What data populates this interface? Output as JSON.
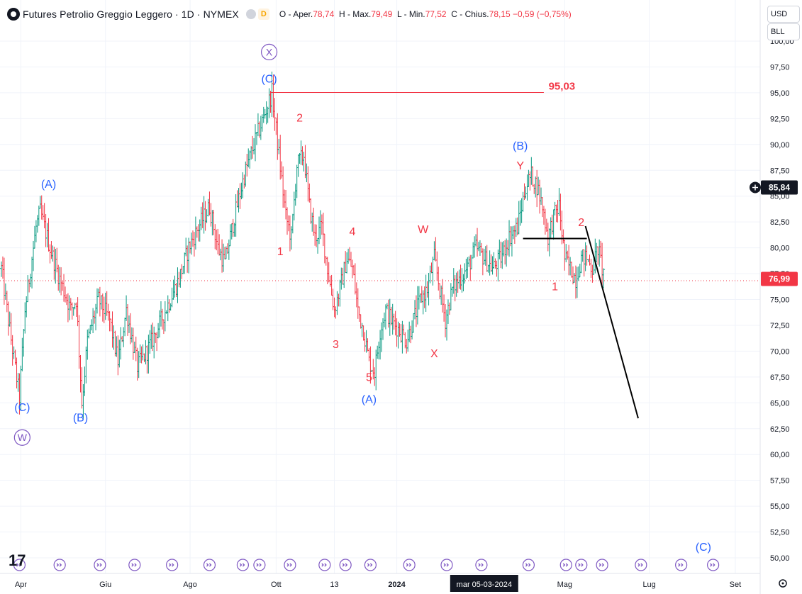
{
  "header": {
    "title": "Futures Petrolio Greggio Leggero · 1D · NYMEX",
    "badge": "D",
    "ohlc": [
      {
        "label": "O -",
        "key": "Aper.",
        "value": "78,74"
      },
      {
        "label": "H -",
        "key": "Max.",
        "value": "79,49"
      },
      {
        "label": "L -",
        "key": "Min.",
        "value": "77,52"
      },
      {
        "label": "C -",
        "key": "Chius.",
        "value": "78,15"
      }
    ],
    "change": "−0,59 (−0,75%)"
  },
  "currency": "USD",
  "unit": "BLL",
  "price_labels": {
    "marker": "85,84",
    "last": "76,99"
  },
  "colors": {
    "up": "#089981",
    "down": "#f23645",
    "blue_label": "#2962ff",
    "red_label": "#f23645",
    "purple": "#7e57c2"
  },
  "chart_data": {
    "type": "ohlc-bar",
    "y_ticks": [
      "100,00",
      "97,50",
      "95,00",
      "92,50",
      "90,00",
      "87,50",
      "85,00",
      "82,50",
      "80,00",
      "77,50",
      "75,00",
      "72,50",
      "70,00",
      "67,50",
      "65,00",
      "62,50",
      "60,00",
      "57,50",
      "55,00",
      "52,50",
      "50,00"
    ],
    "x_labels": [
      {
        "text": "Apr",
        "t": 14
      },
      {
        "text": "Giu",
        "t": 75
      },
      {
        "text": "Ago",
        "t": 136
      },
      {
        "text": "Ott",
        "t": 198
      },
      {
        "text": "13",
        "t": 240
      },
      {
        "text": "2024",
        "t": 285
      },
      {
        "text": "Mag",
        "t": 406
      },
      {
        "text": "Lug",
        "t": 467
      },
      {
        "text": "Set",
        "t": 529
      }
    ],
    "crosshair_label": {
      "text": "mar 05-03-2024",
      "t": 348
    },
    "ylim": [
      49,
      101.5
    ],
    "xlim": [
      -2,
      545
    ],
    "last_price": 76.99,
    "anchors": [
      [
        0,
        78
      ],
      [
        5,
        73
      ],
      [
        13,
        65.5
      ],
      [
        17,
        74
      ],
      [
        25,
        82
      ],
      [
        28,
        83.5
      ],
      [
        35,
        80
      ],
      [
        42,
        77
      ],
      [
        50,
        74
      ],
      [
        54,
        75
      ],
      [
        58,
        65
      ],
      [
        62,
        71
      ],
      [
        70,
        75
      ],
      [
        78,
        73
      ],
      [
        84,
        69
      ],
      [
        90,
        74
      ],
      [
        98,
        68.5
      ],
      [
        105,
        70
      ],
      [
        112,
        72
      ],
      [
        120,
        74.5
      ],
      [
        128,
        77
      ],
      [
        135,
        80
      ],
      [
        142,
        82
      ],
      [
        150,
        84
      ],
      [
        156,
        80
      ],
      [
        161,
        78.5
      ],
      [
        168,
        83
      ],
      [
        175,
        87
      ],
      [
        182,
        90
      ],
      [
        190,
        93
      ],
      [
        195,
        95
      ],
      [
        200,
        89
      ],
      [
        205,
        83
      ],
      [
        209,
        81
      ],
      [
        213,
        88
      ],
      [
        218,
        89
      ],
      [
        222,
        84
      ],
      [
        226,
        81
      ],
      [
        231,
        82
      ],
      [
        235,
        78
      ],
      [
        240,
        74
      ],
      [
        244,
        76
      ],
      [
        249,
        79
      ],
      [
        253,
        78
      ],
      [
        257,
        74
      ],
      [
        261,
        72
      ],
      [
        265,
        69
      ],
      [
        269,
        68
      ],
      [
        273,
        72
      ],
      [
        277,
        74
      ],
      [
        281,
        73
      ],
      [
        287,
        72
      ],
      [
        292,
        71
      ],
      [
        297,
        73
      ],
      [
        302,
        75
      ],
      [
        307,
        76
      ],
      [
        312,
        79
      ],
      [
        316,
        76
      ],
      [
        320,
        73
      ],
      [
        325,
        76
      ],
      [
        330,
        77
      ],
      [
        336,
        78
      ],
      [
        342,
        80
      ],
      [
        348,
        79
      ],
      [
        354,
        78
      ],
      [
        360,
        79
      ],
      [
        366,
        81
      ],
      [
        372,
        82
      ],
      [
        378,
        86
      ],
      [
        382,
        87
      ],
      [
        386,
        86
      ],
      [
        390,
        84
      ],
      [
        394,
        81
      ],
      [
        398,
        83
      ],
      [
        402,
        84
      ],
      [
        406,
        79
      ],
      [
        410,
        78
      ],
      [
        414,
        77
      ],
      [
        418,
        79
      ],
      [
        422,
        79
      ],
      [
        426,
        78
      ],
      [
        430,
        80
      ],
      [
        433,
        78
      ],
      [
        435,
        77
      ]
    ],
    "waves": [
      {
        "text": "(C)",
        "t": 15,
        "y": 64.2,
        "color": "blue"
      },
      {
        "text": "W",
        "t": 15,
        "y": 61.3,
        "color": "purple",
        "circled": true
      },
      {
        "text": "(A)",
        "t": 34,
        "y": 85.8,
        "color": "blue"
      },
      {
        "text": "(B)",
        "t": 57,
        "y": 63.2,
        "color": "blue"
      },
      {
        "text": "X",
        "t": 193,
        "y": 98.6,
        "color": "purple",
        "circled": true
      },
      {
        "text": "(C)",
        "t": 193,
        "y": 96.0,
        "color": "blue"
      },
      {
        "text": "95,03",
        "t": 404,
        "y": 95.3,
        "color": "red",
        "bold": true
      },
      {
        "text": "2",
        "t": 215,
        "y": 92.2,
        "color": "red"
      },
      {
        "text": "1",
        "t": 201,
        "y": 79.3,
        "color": "red"
      },
      {
        "text": "4",
        "t": 253,
        "y": 81.2,
        "color": "red"
      },
      {
        "text": "3",
        "t": 241,
        "y": 70.3,
        "color": "red"
      },
      {
        "text": "5",
        "t": 265,
        "y": 67.1,
        "color": "red"
      },
      {
        "text": "(A)",
        "t": 265,
        "y": 65.0,
        "color": "blue"
      },
      {
        "text": "W",
        "t": 304,
        "y": 81.4,
        "color": "red"
      },
      {
        "text": "X",
        "t": 312,
        "y": 69.4,
        "color": "red"
      },
      {
        "text": "(B)",
        "t": 374,
        "y": 89.5,
        "color": "blue"
      },
      {
        "text": "Y",
        "t": 374,
        "y": 87.6,
        "color": "red"
      },
      {
        "text": "2",
        "t": 418,
        "y": 82.1,
        "color": "red"
      },
      {
        "text": "1",
        "t": 399,
        "y": 75.9,
        "color": "red"
      },
      {
        "text": "(C)",
        "t": 506,
        "y": 50.7,
        "color": "blue"
      }
    ],
    "levels": [
      {
        "price": 95.03,
        "t_from": 194,
        "t_to": 391,
        "color": "#f23645"
      },
      {
        "price": 80.9,
        "t_from": 376,
        "t_to": 422,
        "color": "#000000"
      }
    ],
    "projection": [
      [
        421,
        82.1
      ],
      [
        459,
        63.5
      ]
    ],
    "event_icons": [
      13,
      42,
      71,
      96,
      123,
      150,
      174,
      186,
      208,
      233,
      248,
      266,
      294,
      321,
      346,
      380,
      407,
      418,
      433,
      461,
      490,
      513
    ]
  }
}
